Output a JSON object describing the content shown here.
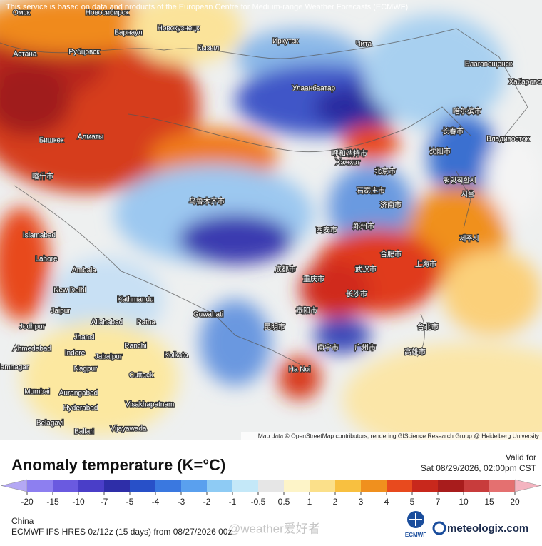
{
  "header": {
    "notice": "This service is based on data and products of the European Centre for Medium-range Weather Forecasts (ECMWF)"
  },
  "map": {
    "attribution": "Map data © OpenStreetMap contributors, rendering GIScience Research Group @ Heidelberg University",
    "labels": [
      "Омск",
      "Новосибирск",
      "Барнаул",
      "Новокузнецк",
      "Рубцовск",
      "Кызыл",
      "Иркутск",
      "Чита",
      "Благовещенск",
      "Хабаровск",
      "Астана",
      "Улаанбаатар",
      "Бишкек",
      "Алматы",
      "Владивосток",
      "Хэх хот",
      "Islamabad",
      "Lahore",
      "Ambala",
      "New Delhi",
      "Kathmandu",
      "Jaipur",
      "Jodhpur",
      "Jhansi",
      "Allahabad",
      "Patna",
      "Guwahati",
      "Ranchi",
      "Kolkata",
      "Ahmedabad",
      "Indore",
      "Jabalpur",
      "Nagpur",
      "Jamnagar",
      "Cuttack",
      "Mumbai",
      "Aurangabad",
      "Hyderabad",
      "Visakhapatnam",
      "Belagavi",
      "Ballari",
      "Vijayawada",
      "Ha Noi",
      "上海市",
      "北京市",
      "武汉市",
      "广州市",
      "重庆市",
      "成都市",
      "西安市",
      "郑州市",
      "济南市",
      "沈阳市",
      "长春市",
      "哈尔滨市",
      "合肥市",
      "长沙市",
      "昆明市",
      "南宁市",
      "贵阳市",
      "台北市",
      "高雄市",
      "평양직할시",
      "서울",
      "제주시",
      "呼和浩特市",
      "石家庄市",
      "乌鲁木齐市",
      "喀什市"
    ]
  },
  "legend": {
    "title": "Anomaly temperature (K=°C)",
    "valid_label": "Valid for",
    "valid_time": "Sat 08/29/2026, 02:00pm CST",
    "ticks": [
      -20,
      -15,
      -10,
      -7,
      -5,
      -4,
      -3,
      -2,
      -1,
      -0.5,
      0.5,
      1,
      2,
      3,
      4,
      5,
      7,
      10,
      15,
      20
    ],
    "colors": [
      "#b4a8f4",
      "#8d7ff0",
      "#6a5ae0",
      "#4a3ec8",
      "#2e2ea8",
      "#2850c8",
      "#3a78e0",
      "#5aa0ee",
      "#8ecbf4",
      "#c4e8f8",
      "#e6e6e6",
      "#fdf4c8",
      "#fbe08a",
      "#f8c040",
      "#f0901e",
      "#e84a1e",
      "#c8281c",
      "#a81c1c",
      "#c83c3c",
      "#e47070",
      "#f4b4c0"
    ]
  },
  "footer": {
    "region": "China",
    "model": "ECMWF IFS HRES 0z/12z (15 days) from 08/27/2026 00z",
    "watermark": "@weather爱好者",
    "ecmwf_logo": "ECMWF",
    "brand": "meteologix.com"
  }
}
